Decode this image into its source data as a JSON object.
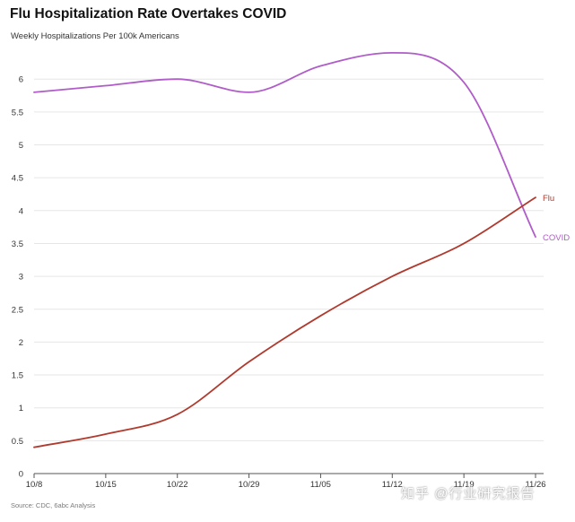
{
  "chart_data": {
    "type": "line",
    "title": "Flu Hospitalization Rate Overtakes COVID",
    "subtitle": "Weekly Hospitalizations Per 100k Americans",
    "xlabel": "",
    "ylabel": "",
    "categories": [
      "10/8",
      "10/15",
      "10/22",
      "10/29",
      "11/05",
      "11/12",
      "11/19",
      "11/26"
    ],
    "yticks": [
      "0",
      "0.5",
      "1",
      "1.5",
      "2",
      "2.5",
      "3",
      "3.5",
      "4",
      "4.5",
      "5",
      "5.5",
      "6"
    ],
    "ylim": [
      0,
      6.5
    ],
    "grid": true,
    "series": [
      {
        "name": "Flu",
        "color": "#b03a2e",
        "values": [
          0.4,
          0.6,
          0.9,
          1.7,
          2.4,
          3.0,
          3.5,
          4.2
        ]
      },
      {
        "name": "COVID",
        "color": "#b05cc9",
        "values": [
          5.8,
          5.9,
          6.0,
          5.8,
          6.2,
          6.4,
          5.95,
          3.6
        ]
      }
    ],
    "source": "Source: CDC, 6abc Analysis"
  },
  "watermark": "知乎 @行业研究报告"
}
